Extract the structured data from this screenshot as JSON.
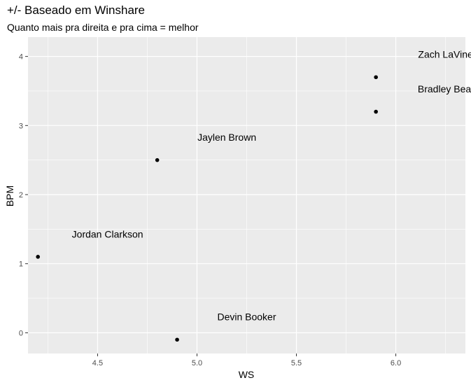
{
  "chart_data": {
    "type": "scatter",
    "title": "+/- Baseado em Winshare",
    "subtitle": "Quanto mais pra direita e pra cima  = melhor",
    "xlabel": "WS",
    "ylabel": "BPM",
    "xlim": [
      4.15,
      6.35
    ],
    "ylim": [
      -0.3,
      4.28
    ],
    "x_ticks": [
      4.5,
      5.0,
      5.5,
      6.0
    ],
    "x_tick_labels": [
      "4.5",
      "5.0",
      "5.5",
      "6.0"
    ],
    "y_ticks": [
      0,
      1,
      2,
      3,
      4
    ],
    "y_tick_labels": [
      "0",
      "1",
      "2",
      "3",
      "4"
    ],
    "grid": true,
    "colors": {
      "panel": "#ebebeb",
      "grid": "#ffffff",
      "point": "#000000"
    },
    "points": [
      {
        "x": 4.2,
        "y": 1.1
      },
      {
        "x": 4.8,
        "y": 2.5
      },
      {
        "x": 4.9,
        "y": -0.1
      },
      {
        "x": 5.9,
        "y": 3.7
      },
      {
        "x": 5.9,
        "y": 3.2
      }
    ],
    "labels": [
      {
        "text": "Jordan Clarkson",
        "x": 4.55,
        "y": 1.43
      },
      {
        "text": "Jaylen Brown",
        "x": 5.15,
        "y": 2.83
      },
      {
        "text": "Devin Booker",
        "x": 5.25,
        "y": 0.23
      },
      {
        "text": "Zach LaVine",
        "x": 6.25,
        "y": 4.03
      },
      {
        "text": "Bradley Beal",
        "x": 6.25,
        "y": 3.53
      }
    ]
  }
}
